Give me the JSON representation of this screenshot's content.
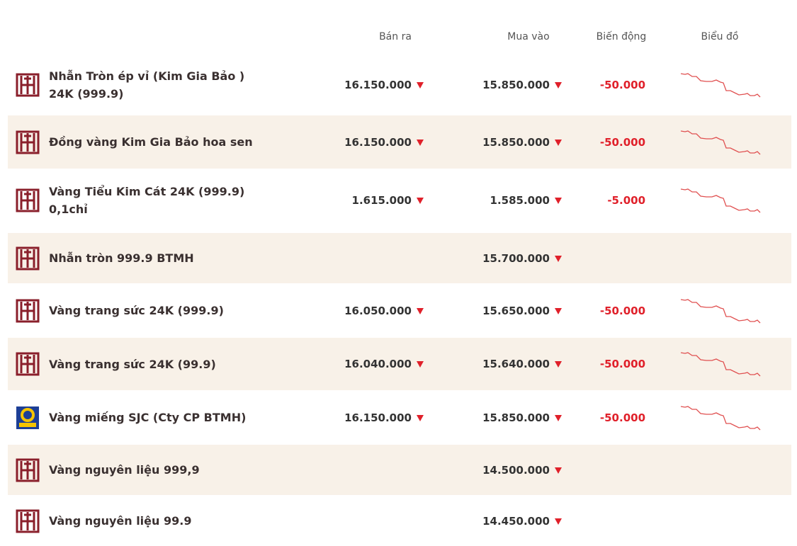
{
  "table": {
    "header": [
      "Bán ra",
      "Mua vào",
      "Biến động",
      "Biểu đồ"
    ],
    "rows": [
      {
        "name": "Nhẫn Tròn ép vỉ (Kim Gia Bảo ) 24K (999.9)",
        "sell": "16.150.000",
        "buy": "15.850.000",
        "change": "-50.000"
      },
      {
        "name": "Đồng vàng Kim Gia Bảo hoa sen",
        "sell": "16.150.000",
        "buy": "15.850.000",
        "change": "-50.000"
      },
      {
        "name": "Vàng Tiểu Kim Cát 24K (999.9) 0,1chỉ",
        "sell": "1.615.000",
        "buy": "1.585.000",
        "change": "-5.000"
      },
      {
        "name": "Nhẫn tròn 999.9 BTMH",
        "sell": null,
        "buy": "15.700.000",
        "change": null
      },
      {
        "name": "Vàng trang sức 24K (999.9)",
        "sell": "16.050.000",
        "buy": "15.650.000",
        "change": "-50.000"
      },
      {
        "name": "Vàng trang sức 24K (99.9)",
        "sell": "16.040.000",
        "buy": "15.640.000",
        "change": "-50.000"
      },
      {
        "name": "Vàng miếng SJC (Cty CP BTMH)",
        "sell": "16.150.000",
        "buy": "15.850.000",
        "change": "-50.000"
      },
      {
        "name": "Vàng nguyên liệu 999,9",
        "sell": null,
        "buy": "14.500.000",
        "change": null
      },
      {
        "name": "Vàng nguyên liệu 99.9",
        "sell": null,
        "buy": "14.450.000",
        "change": null
      }
    ]
  }
}
